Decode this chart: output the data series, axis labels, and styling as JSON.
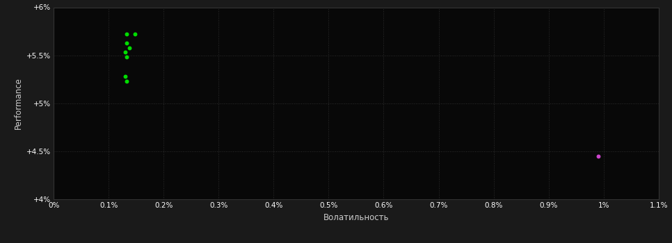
{
  "background_color": "#1a1a1a",
  "plot_bg_color": "#080808",
  "grid_color": "#2d2d2d",
  "xlabel": "Волатильность",
  "ylabel": "Performance",
  "tick_color": "#ffffff",
  "label_color": "#cccccc",
  "xlim": [
    0.0,
    0.011
  ],
  "ylim": [
    0.04,
    0.06
  ],
  "xticks": [
    0.0,
    0.001,
    0.002,
    0.003,
    0.004,
    0.005,
    0.006,
    0.007,
    0.008,
    0.009,
    0.01,
    0.011
  ],
  "xtick_labels": [
    "0%",
    "0.1%",
    "0.2%",
    "0.3%",
    "0.4%",
    "0.5%",
    "0.6%",
    "0.7%",
    "0.8%",
    "0.9%",
    "1%",
    "1.1%"
  ],
  "yticks": [
    0.04,
    0.045,
    0.05,
    0.055,
    0.06
  ],
  "ytick_labels": [
    "+4%",
    "+4.5%",
    "+5%",
    "+5.5%",
    "+6%"
  ],
  "green_points": [
    [
      0.00133,
      0.0572
    ],
    [
      0.00148,
      0.0572
    ],
    [
      0.00133,
      0.0563
    ],
    [
      0.00138,
      0.0558
    ],
    [
      0.0013,
      0.0553
    ],
    [
      0.00133,
      0.0548
    ],
    [
      0.0013,
      0.0528
    ],
    [
      0.00133,
      0.0523
    ]
  ],
  "green_color": "#00dd00",
  "magenta_points": [
    [
      0.0099,
      0.0445
    ]
  ],
  "magenta_color": "#cc44cc",
  "marker_size": 18
}
